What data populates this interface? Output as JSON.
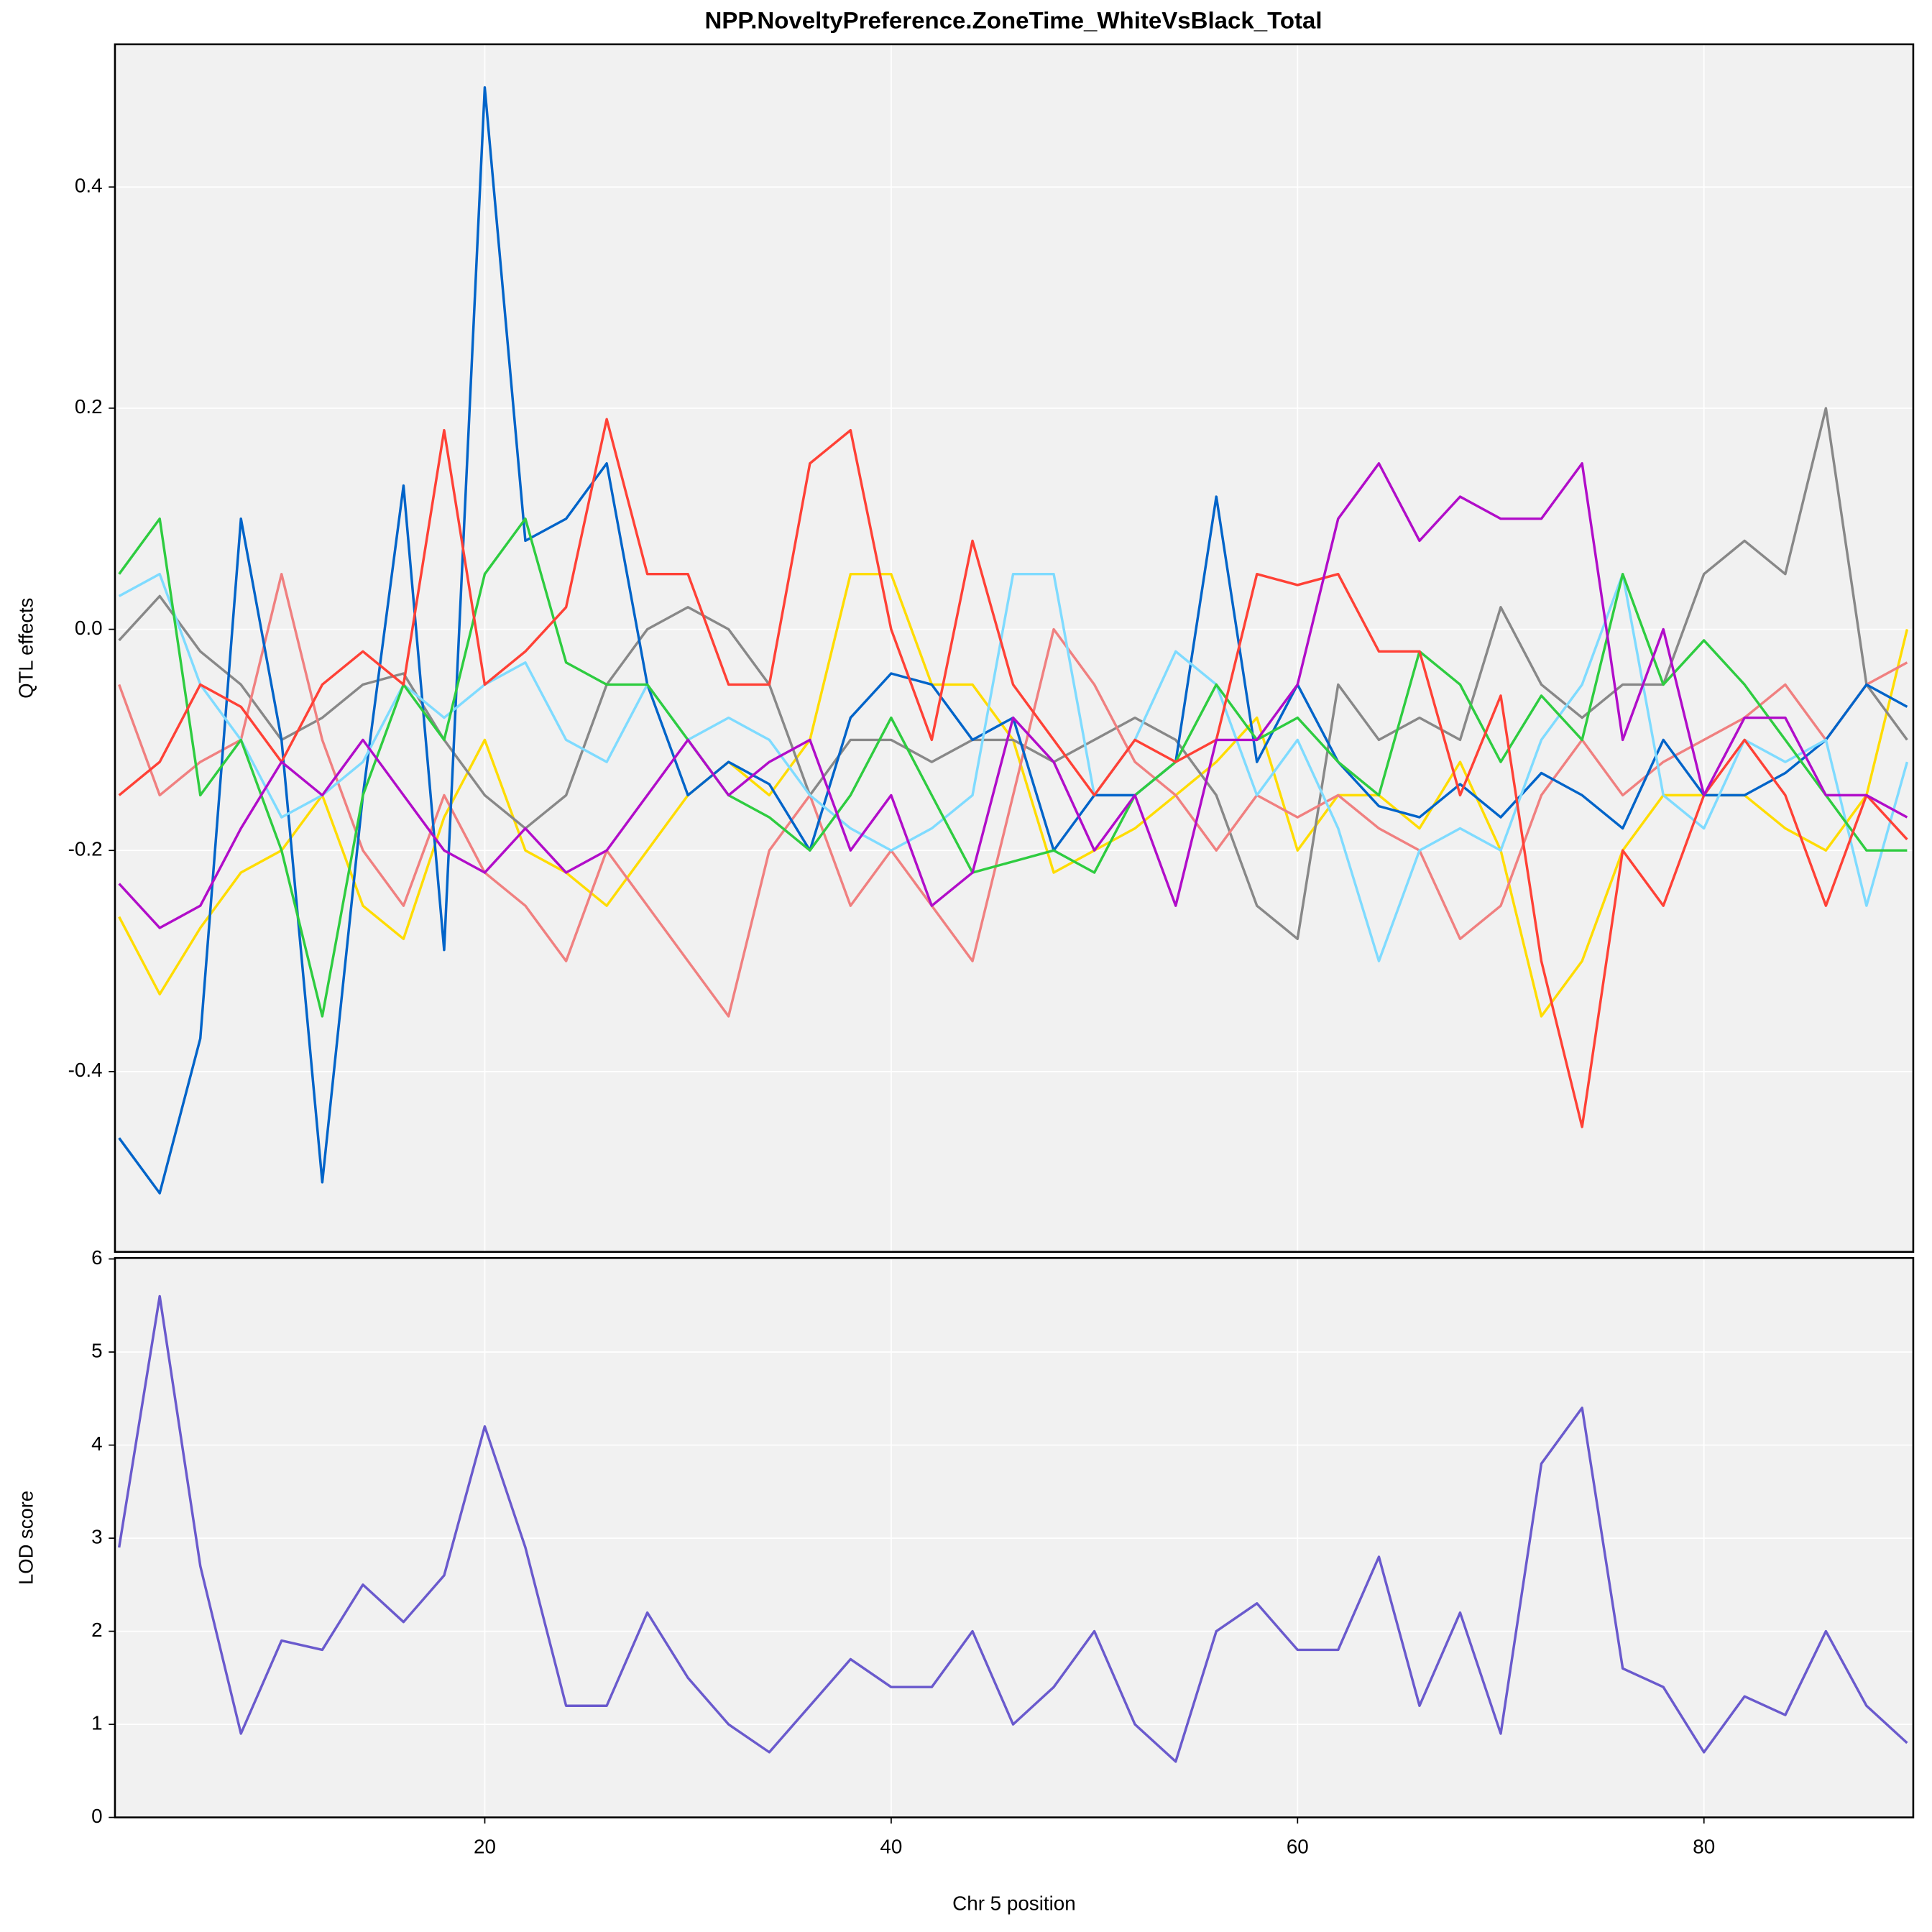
{
  "chart_data": [
    {
      "type": "line",
      "title": "NPP.NoveltyPreference.ZoneTime_WhiteVsBlack_Total",
      "y_label": "QTL effects",
      "x": [
        2,
        4,
        6,
        8,
        10,
        12,
        14,
        16,
        18,
        20,
        22,
        24,
        26,
        28,
        30,
        32,
        34,
        36,
        38,
        40,
        42,
        44,
        46,
        48,
        50,
        52,
        54,
        56,
        58,
        60,
        62,
        64,
        66,
        68,
        70,
        72,
        74,
        76,
        78,
        80,
        82,
        84,
        86,
        88,
        90
      ],
      "xlim": [
        1.8,
        90.3
      ],
      "ylim": [
        -0.563,
        0.529
      ],
      "xticks": [
        20,
        40,
        60,
        80
      ],
      "yticks": [
        -0.4,
        -0.2,
        {
          "value": 0,
          "label": "0.0"
        },
        0.2,
        0.4
      ],
      "grid": true,
      "series": [
        {
          "color": "#FFDC00",
          "values": [
            -0.26,
            -0.33,
            -0.27,
            -0.22,
            -0.2,
            -0.15,
            -0.25,
            -0.28,
            -0.17,
            -0.1,
            -0.2,
            -0.22,
            -0.25,
            -0.2,
            -0.15,
            -0.12,
            -0.15,
            -0.1,
            0.05,
            0.05,
            -0.05,
            -0.05,
            -0.1,
            -0.22,
            -0.2,
            -0.18,
            -0.15,
            -0.12,
            -0.08,
            -0.2,
            -0.15,
            -0.15,
            -0.18,
            -0.12,
            -0.2,
            -0.35,
            -0.3,
            -0.2,
            -0.15,
            -0.15,
            -0.15,
            -0.18,
            -0.2,
            -0.15,
            0.0
          ]
        },
        {
          "color": "#888888",
          "values": [
            -0.01,
            0.03,
            -0.02,
            -0.05,
            -0.1,
            -0.08,
            -0.05,
            -0.04,
            -0.1,
            -0.15,
            -0.18,
            -0.15,
            -0.05,
            0.0,
            0.02,
            0.0,
            -0.05,
            -0.15,
            -0.1,
            -0.1,
            -0.12,
            -0.1,
            -0.1,
            -0.12,
            -0.1,
            -0.08,
            -0.1,
            -0.15,
            -0.25,
            -0.28,
            -0.05,
            -0.1,
            -0.08,
            -0.1,
            0.02,
            -0.05,
            -0.08,
            -0.05,
            -0.05,
            0.05,
            0.08,
            0.05,
            0.2,
            -0.05,
            -0.1
          ]
        },
        {
          "color": "#F08080",
          "values": [
            -0.05,
            -0.15,
            -0.12,
            -0.1,
            0.05,
            -0.1,
            -0.2,
            -0.25,
            -0.15,
            -0.22,
            -0.25,
            -0.3,
            -0.2,
            -0.25,
            -0.3,
            -0.35,
            -0.2,
            -0.15,
            -0.25,
            -0.2,
            -0.25,
            -0.3,
            -0.15,
            0.0,
            -0.05,
            -0.12,
            -0.15,
            -0.2,
            -0.15,
            -0.17,
            -0.15,
            -0.18,
            -0.2,
            -0.28,
            -0.25,
            -0.15,
            -0.1,
            -0.15,
            -0.12,
            -0.1,
            -0.08,
            -0.05,
            -0.1,
            -0.05,
            -0.03
          ]
        },
        {
          "color": "#0064C9",
          "values": [
            -0.46,
            -0.51,
            -0.37,
            0.1,
            -0.1,
            -0.5,
            -0.15,
            0.13,
            -0.29,
            0.49,
            0.08,
            0.1,
            0.15,
            -0.05,
            -0.15,
            -0.12,
            -0.14,
            -0.2,
            -0.08,
            -0.04,
            -0.05,
            -0.1,
            -0.08,
            -0.2,
            -0.15,
            -0.15,
            -0.12,
            0.12,
            -0.12,
            -0.05,
            -0.12,
            -0.16,
            -0.17,
            -0.14,
            -0.17,
            -0.13,
            -0.15,
            -0.18,
            -0.1,
            -0.15,
            -0.15,
            -0.13,
            -0.1,
            -0.05,
            -0.07
          ]
        },
        {
          "color": "#7FDBFF",
          "values": [
            0.03,
            0.05,
            -0.05,
            -0.1,
            -0.17,
            -0.15,
            -0.12,
            -0.05,
            -0.08,
            -0.05,
            -0.03,
            -0.1,
            -0.12,
            -0.05,
            -0.1,
            -0.08,
            -0.1,
            -0.15,
            -0.18,
            -0.2,
            -0.18,
            -0.15,
            0.05,
            0.05,
            -0.15,
            -0.1,
            -0.02,
            -0.05,
            -0.15,
            -0.1,
            -0.18,
            -0.3,
            -0.2,
            -0.18,
            -0.2,
            -0.1,
            -0.05,
            0.05,
            -0.15,
            -0.18,
            -0.1,
            -0.12,
            -0.1,
            -0.25,
            -0.12
          ]
        },
        {
          "color": "#2ECC40",
          "values": [
            0.05,
            0.1,
            -0.15,
            -0.1,
            -0.2,
            -0.35,
            -0.15,
            -0.05,
            -0.1,
            0.05,
            0.1,
            -0.03,
            -0.05,
            -0.05,
            -0.1,
            -0.15,
            -0.17,
            -0.2,
            -0.15,
            -0.08,
            -0.15,
            -0.22,
            -0.21,
            -0.2,
            -0.22,
            -0.15,
            -0.12,
            -0.05,
            -0.1,
            -0.08,
            -0.12,
            -0.15,
            -0.02,
            -0.05,
            -0.12,
            -0.06,
            -0.1,
            0.05,
            -0.05,
            -0.01,
            -0.05,
            -0.1,
            -0.15,
            -0.2,
            -0.2
          ]
        },
        {
          "color": "#FF4136",
          "values": [
            -0.15,
            -0.12,
            -0.05,
            -0.07,
            -0.12,
            -0.05,
            -0.02,
            -0.05,
            0.18,
            -0.05,
            -0.02,
            0.02,
            0.19,
            0.05,
            0.05,
            -0.05,
            -0.05,
            0.15,
            0.18,
            0.0,
            -0.1,
            0.08,
            -0.05,
            -0.1,
            -0.15,
            -0.1,
            -0.12,
            -0.1,
            0.05,
            0.04,
            0.05,
            -0.02,
            -0.02,
            -0.15,
            -0.06,
            -0.3,
            -0.45,
            -0.2,
            -0.25,
            -0.15,
            -0.1,
            -0.15,
            -0.25,
            -0.15,
            -0.19
          ]
        },
        {
          "color": "#B10DC9",
          "values": [
            -0.23,
            -0.27,
            -0.25,
            -0.18,
            -0.12,
            -0.15,
            -0.1,
            -0.15,
            -0.2,
            -0.22,
            -0.18,
            -0.22,
            -0.2,
            -0.15,
            -0.1,
            -0.15,
            -0.12,
            -0.1,
            -0.2,
            -0.15,
            -0.25,
            -0.22,
            -0.08,
            -0.12,
            -0.2,
            -0.15,
            -0.25,
            -0.1,
            -0.1,
            -0.05,
            0.1,
            0.15,
            0.08,
            0.12,
            0.1,
            0.1,
            0.15,
            -0.1,
            0.0,
            -0.15,
            -0.08,
            -0.08,
            -0.15,
            -0.15,
            -0.17
          ]
        }
      ]
    },
    {
      "type": "line",
      "y_label": "LOD score",
      "x_label": "Chr 5 position",
      "x": [
        2,
        4,
        6,
        8,
        10,
        12,
        14,
        16,
        18,
        20,
        22,
        24,
        26,
        28,
        30,
        32,
        34,
        36,
        38,
        40,
        42,
        44,
        46,
        48,
        50,
        52,
        54,
        56,
        58,
        60,
        62,
        64,
        66,
        68,
        70,
        72,
        74,
        76,
        78,
        80,
        82,
        84,
        86,
        88,
        90
      ],
      "xlim": [
        1.8,
        90.3
      ],
      "ylim": [
        0,
        6.01
      ],
      "xticks": [
        20,
        40,
        60,
        80
      ],
      "yticks": [
        0,
        1,
        2,
        3,
        4,
        5,
        6
      ],
      "grid": true,
      "series": [
        {
          "color": "#6A5ACD",
          "values": [
            2.9,
            5.6,
            2.7,
            0.9,
            1.9,
            1.8,
            2.5,
            2.1,
            2.6,
            4.2,
            2.9,
            1.2,
            1.2,
            2.2,
            1.5,
            1.0,
            0.7,
            1.2,
            1.7,
            1.4,
            1.4,
            2.0,
            1.0,
            1.4,
            2.0,
            1.0,
            0.6,
            2.0,
            2.3,
            1.8,
            1.8,
            2.8,
            1.2,
            2.2,
            0.9,
            3.8,
            4.4,
            1.6,
            1.4,
            0.7,
            1.3,
            1.1,
            2.0,
            1.2,
            0.8
          ]
        }
      ]
    }
  ]
}
